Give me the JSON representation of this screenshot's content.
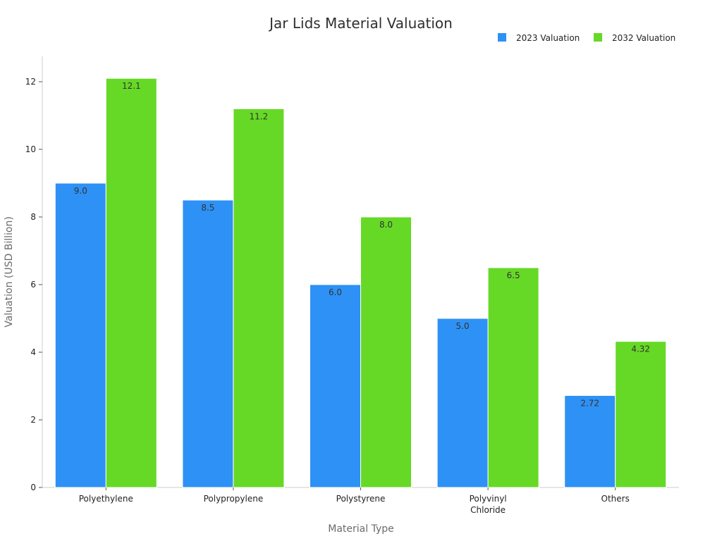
{
  "chart_data": {
    "type": "bar",
    "title": "Jar Lids Material Valuation",
    "xlabel": "Material Type",
    "ylabel": "Valuation (USD Billion)",
    "categories": [
      "Polyethylene",
      "Polypropylene",
      "Polystyrene",
      "Polyvinyl Chloride",
      "Others"
    ],
    "category_lines": [
      [
        "Polyethylene"
      ],
      [
        "Polypropylene"
      ],
      [
        "Polystyrene"
      ],
      [
        "Polyvinyl",
        "Chloride"
      ],
      [
        "Others"
      ]
    ],
    "series": [
      {
        "name": "2023 Valuation",
        "color": "#2e91f5",
        "values": [
          9.0,
          8.5,
          6.0,
          5.0,
          2.72
        ],
        "labels": [
          "9.0",
          "8.5",
          "6.0",
          "5.0",
          "2.72"
        ]
      },
      {
        "name": "2032 Valuation",
        "color": "#66d926",
        "values": [
          12.1,
          11.2,
          8.0,
          6.5,
          4.32
        ],
        "labels": [
          "12.1",
          "11.2",
          "8.0",
          "6.5",
          "4.32"
        ]
      }
    ],
    "yticks": [
      0,
      2,
      4,
      6,
      8,
      10,
      12
    ],
    "ytick_labels": [
      "0",
      "2",
      "4",
      "6",
      "8",
      "10",
      "12"
    ],
    "ylim": [
      0,
      12.75
    ],
    "grid": false,
    "legend_position": "top-right"
  }
}
